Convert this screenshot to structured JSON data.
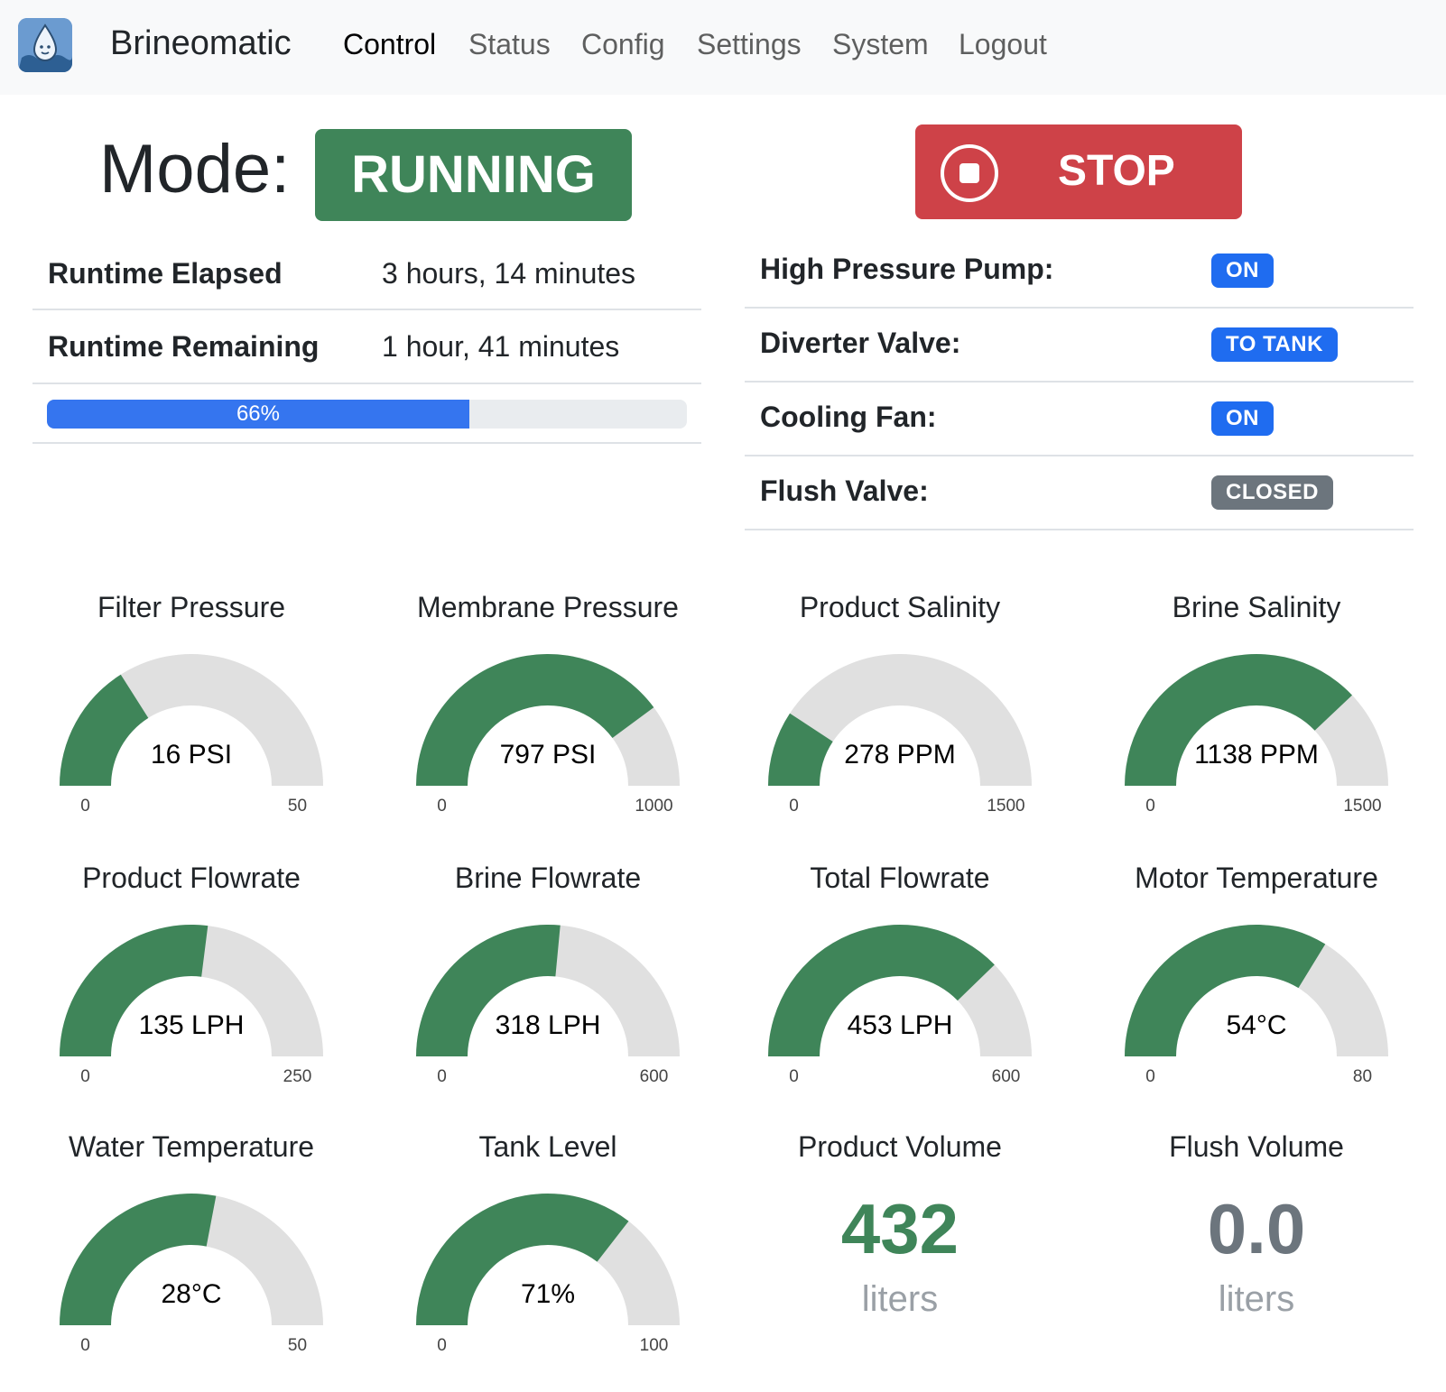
{
  "nav": {
    "brand": "Brineomatic",
    "links": [
      "Control",
      "Status",
      "Config",
      "Settings",
      "System",
      "Logout"
    ],
    "active": "Control"
  },
  "mode": {
    "label": "Mode:",
    "value": "RUNNING",
    "color": "#3f8559"
  },
  "stop_button": {
    "label": "STOP",
    "color": "#ce4248"
  },
  "runtime": {
    "elapsed_label": "Runtime Elapsed",
    "elapsed_value": "3 hours, 14 minutes",
    "remaining_label": "Runtime Remaining",
    "remaining_value": "1 hour, 41 minutes",
    "progress_text": "66%",
    "progress_fraction": 0.66
  },
  "status": [
    {
      "label": "High Pressure Pump:",
      "value": "ON",
      "color": "#1f6cf0"
    },
    {
      "label": "Diverter Valve:",
      "value": "TO TANK",
      "color": "#1f6cf0"
    },
    {
      "label": "Cooling Fan:",
      "value": "ON",
      "color": "#1f6cf0"
    },
    {
      "label": "Flush Valve:",
      "value": "CLOSED",
      "color": "#6c757d"
    }
  ],
  "gauges": [
    {
      "title": "Filter Pressure",
      "value": 16,
      "display": "16 PSI",
      "min": 0,
      "max": 50
    },
    {
      "title": "Membrane Pressure",
      "value": 797,
      "display": "797 PSI",
      "min": 0,
      "max": 1000
    },
    {
      "title": "Product Salinity",
      "value": 278,
      "display": "278 PPM",
      "min": 0,
      "max": 1500
    },
    {
      "title": "Brine Salinity",
      "value": 1138,
      "display": "1138 PPM",
      "min": 0,
      "max": 1500
    },
    {
      "title": "Product Flowrate",
      "value": 135,
      "display": "135 LPH",
      "min": 0,
      "max": 250
    },
    {
      "title": "Brine Flowrate",
      "value": 318,
      "display": "318 LPH",
      "min": 0,
      "max": 600
    },
    {
      "title": "Total Flowrate",
      "value": 453,
      "display": "453 LPH",
      "min": 0,
      "max": 600
    },
    {
      "title": "Motor Temperature",
      "value": 54,
      "display": "54°C",
      "min": 0,
      "max": 80
    },
    {
      "title": "Water Temperature",
      "value": 28,
      "display": "28°C",
      "min": 0,
      "max": 50
    },
    {
      "title": "Tank Level",
      "value": 71,
      "display": "71%",
      "min": 0,
      "max": 100
    }
  ],
  "gauge_colors": {
    "fill": "#3f8559",
    "track": "#e0e0e0"
  },
  "volumes": [
    {
      "title": "Product Volume",
      "value": "432",
      "unit": "liters",
      "color": "#3f8559"
    },
    {
      "title": "Flush Volume",
      "value": "0.0",
      "unit": "liters",
      "color": "#6c757d"
    }
  ]
}
